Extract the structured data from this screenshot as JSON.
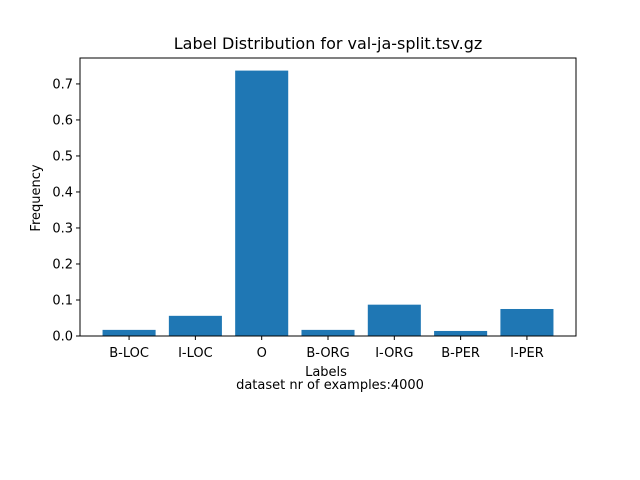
{
  "chart_data": {
    "type": "bar",
    "title": "Label Distribution for val-ja-split.tsv.gz",
    "xlabel": "Labels",
    "ylabel": "Frequency",
    "footnote": "dataset nr of examples:4000",
    "categories": [
      "B-LOC",
      "I-LOC",
      "O",
      "B-ORG",
      "I-ORG",
      "B-PER",
      "I-PER"
    ],
    "values": [
      0.017,
      0.056,
      0.737,
      0.017,
      0.087,
      0.014,
      0.075
    ],
    "ylim": [
      0,
      0.772
    ],
    "yticks": [
      0.0,
      0.1,
      0.2,
      0.3,
      0.4,
      0.5,
      0.6,
      0.7
    ],
    "ytick_labels": [
      "0.0",
      "0.1",
      "0.2",
      "0.3",
      "0.4",
      "0.5",
      "0.6",
      "0.7"
    ],
    "bar_color": "#1f77b4",
    "grid": false,
    "legend": "none"
  }
}
